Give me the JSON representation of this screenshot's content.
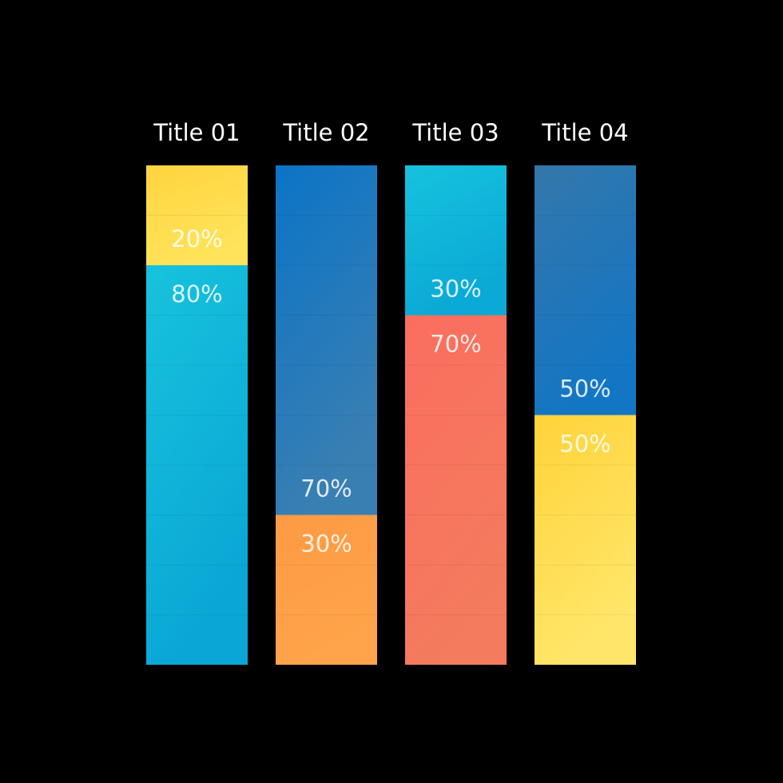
{
  "chart_data": {
    "type": "bar",
    "stacked": true,
    "orientation": "vertical",
    "categories": [
      "Title 01",
      "Title 02",
      "Title 03",
      "Title 04"
    ],
    "ylim": [
      0,
      100
    ],
    "grid": false,
    "legend": "none",
    "columns": [
      {
        "title": "Title 01",
        "segments": [
          {
            "value": 20,
            "label": "20%",
            "colors": [
              "#ffd43f",
              "#ffe35a"
            ]
          },
          {
            "value": 80,
            "label": "80%",
            "colors": [
              "#17c3dd",
              "#0aa6d5"
            ]
          }
        ]
      },
      {
        "title": "Title 02",
        "segments": [
          {
            "value": 70,
            "label": "70%",
            "colors": [
              "#0b74c6",
              "#3a7fb2"
            ]
          },
          {
            "value": 30,
            "label": "30%",
            "colors": [
              "#fd9a45",
              "#ffa44a"
            ]
          }
        ]
      },
      {
        "title": "Title 03",
        "segments": [
          {
            "value": 30,
            "label": "30%",
            "colors": [
              "#16c2dd",
              "#0aa9d6"
            ]
          },
          {
            "value": 70,
            "label": "70%",
            "colors": [
              "#fa6e5e",
              "#f47b5e"
            ]
          }
        ]
      },
      {
        "title": "Title 04",
        "segments": [
          {
            "value": 50,
            "label": "50%",
            "colors": [
              "#3477aa",
              "#1376c4"
            ]
          },
          {
            "value": 50,
            "label": "50%",
            "colors": [
              "#ffd33a",
              "#ffe66a"
            ]
          }
        ]
      }
    ],
    "background": "#000000",
    "text_color": "#ffffff"
  }
}
